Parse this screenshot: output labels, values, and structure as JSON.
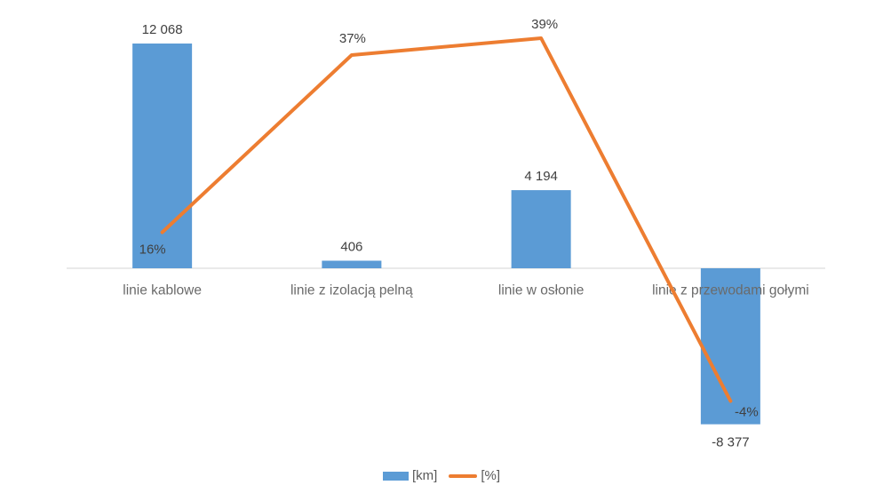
{
  "chart_data": {
    "type": "combo",
    "title": "",
    "categories": [
      "linie kablowe",
      "linie z izolacją pelną",
      "linie w osłonie",
      "linie z przewodami gołymi"
    ],
    "series": [
      {
        "name": "[km]",
        "type": "bar",
        "axis": "km",
        "color": "#5B9BD5",
        "values": [
          12068,
          406,
          4194,
          -8377
        ],
        "labels": [
          "12 068",
          "406",
          "4 194",
          "-8 377"
        ]
      },
      {
        "name": "[%]",
        "type": "line",
        "axis": "pct",
        "color": "#ED7D31",
        "values": [
          16,
          37,
          39,
          -4
        ],
        "labels": [
          "16%",
          "37%",
          "39%",
          "-4%"
        ]
      }
    ],
    "legend": {
      "position": "bottom",
      "items": [
        "[km]",
        "[%]"
      ]
    },
    "grid": false,
    "axes": {
      "category_axis_visible": true,
      "value_axis_visible": false,
      "baseline_value": 0
    }
  },
  "colors": {
    "bar": "#5B9BD5",
    "line": "#ED7D31",
    "axis": "#D6D6D6",
    "data_label": "#404040",
    "category_label": "#6A6A6A",
    "legend_label": "#595959",
    "background": "#FFFFFF"
  }
}
